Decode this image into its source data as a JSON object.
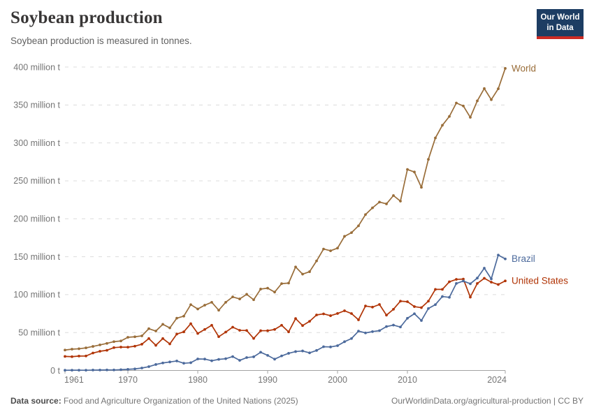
{
  "header": {
    "title": "Soybean production",
    "subtitle": "Soybean production is measured in tonnes.",
    "logo_line1": "Our World",
    "logo_line2": "in Data",
    "logo_bg": "#1d3d63",
    "logo_stripe": "#cc2b24"
  },
  "footer": {
    "data_source_label": "Data source:",
    "data_source_text": " Food and Agriculture Organization of the United Nations (2025)",
    "credit": "OurWorldinData.org/agricultural-production | CC BY"
  },
  "chart_data": {
    "type": "line",
    "title": "Soybean production",
    "unit": "tonnes",
    "grid": "horizontal-dashed",
    "legend": "end-labels",
    "ylim": [
      0,
      400
    ],
    "yticks": [
      {
        "value": 0,
        "label": "0 t"
      },
      {
        "value": 50,
        "label": "50 million t"
      },
      {
        "value": 100,
        "label": "100 million t"
      },
      {
        "value": 150,
        "label": "150 million t"
      },
      {
        "value": 200,
        "label": "200 million t"
      },
      {
        "value": 250,
        "label": "250 million t"
      },
      {
        "value": 300,
        "label": "300 million t"
      },
      {
        "value": 350,
        "label": "350 million t"
      },
      {
        "value": 400,
        "label": "400 million t"
      }
    ],
    "xticks": [
      1961,
      1970,
      1980,
      1990,
      2000,
      2010,
      2024
    ],
    "x": [
      1961,
      1962,
      1963,
      1964,
      1965,
      1966,
      1967,
      1968,
      1969,
      1970,
      1971,
      1972,
      1973,
      1974,
      1975,
      1976,
      1977,
      1978,
      1979,
      1980,
      1981,
      1982,
      1983,
      1984,
      1985,
      1986,
      1987,
      1988,
      1989,
      1990,
      1991,
      1992,
      1993,
      1994,
      1995,
      1996,
      1997,
      1998,
      1999,
      2000,
      2001,
      2002,
      2003,
      2004,
      2005,
      2006,
      2007,
      2008,
      2009,
      2010,
      2011,
      2012,
      2013,
      2014,
      2015,
      2016,
      2017,
      2018,
      2019,
      2020,
      2021,
      2022,
      2023,
      2024
    ],
    "series": [
      {
        "name": "World",
        "color": "#996d39",
        "values": [
          26.9,
          28.1,
          28.6,
          29.8,
          31.7,
          33.7,
          35.7,
          38.0,
          38.9,
          43.7,
          44.4,
          45.6,
          55.1,
          52.0,
          60.9,
          56.1,
          68.9,
          71.6,
          86.8,
          81.0,
          86.1,
          89.9,
          79.4,
          89.9,
          97.0,
          94.3,
          100.4,
          93.2,
          107.3,
          108.5,
          103.3,
          114.5,
          115.2,
          136.5,
          127.0,
          130.2,
          144.4,
          160.1,
          157.8,
          161.3,
          176.8,
          181.7,
          190.7,
          205.5,
          214.4,
          222.0,
          219.6,
          230.6,
          223.2,
          265.0,
          261.6,
          241.4,
          278.3,
          306.5,
          323.2,
          334.9,
          352.6,
          348.7,
          333.7,
          355.4,
          371.7,
          357.0,
          371.4,
          398.2
        ]
      },
      {
        "name": "United States",
        "color": "#b13507",
        "values": [
          18.5,
          18.2,
          19.0,
          19.1,
          23.0,
          25.3,
          26.6,
          30.1,
          30.8,
          30.7,
          32.0,
          34.6,
          42.1,
          33.1,
          42.1,
          35.0,
          48.0,
          50.9,
          61.7,
          48.8,
          54.1,
          59.6,
          44.5,
          50.6,
          57.1,
          52.9,
          52.7,
          42.2,
          52.4,
          52.4,
          54.1,
          59.6,
          50.9,
          68.4,
          59.2,
          64.8,
          73.2,
          74.6,
          72.2,
          75.1,
          78.7,
          75.0,
          66.8,
          85.0,
          83.5,
          87.0,
          72.9,
          80.7,
          91.4,
          90.7,
          84.2,
          82.8,
          91.4,
          106.9,
          106.9,
          116.9,
          120.1,
          120.5,
          96.7,
          114.7,
          121.5,
          116.4,
          113.3,
          118.1
        ]
      },
      {
        "name": "Brazil",
        "color": "#4c6a9c",
        "values": [
          0.27,
          0.35,
          0.32,
          0.3,
          0.52,
          0.6,
          0.72,
          0.65,
          1.06,
          1.51,
          2.08,
          3.22,
          5.01,
          7.88,
          9.89,
          11.2,
          12.5,
          9.5,
          10.2,
          15.2,
          15.0,
          12.8,
          14.6,
          15.5,
          18.3,
          13.3,
          17.0,
          18.0,
          24.0,
          19.9,
          14.9,
          19.2,
          22.6,
          24.9,
          25.7,
          23.2,
          26.4,
          31.3,
          31.0,
          32.7,
          37.9,
          42.1,
          51.9,
          49.5,
          51.2,
          52.5,
          57.9,
          59.8,
          57.3,
          68.8,
          74.8,
          65.8,
          81.7,
          86.8,
          97.5,
          96.4,
          114.7,
          117.9,
          114.3,
          121.8,
          134.9,
          120.7,
          152.1,
          147.1
        ]
      }
    ]
  }
}
